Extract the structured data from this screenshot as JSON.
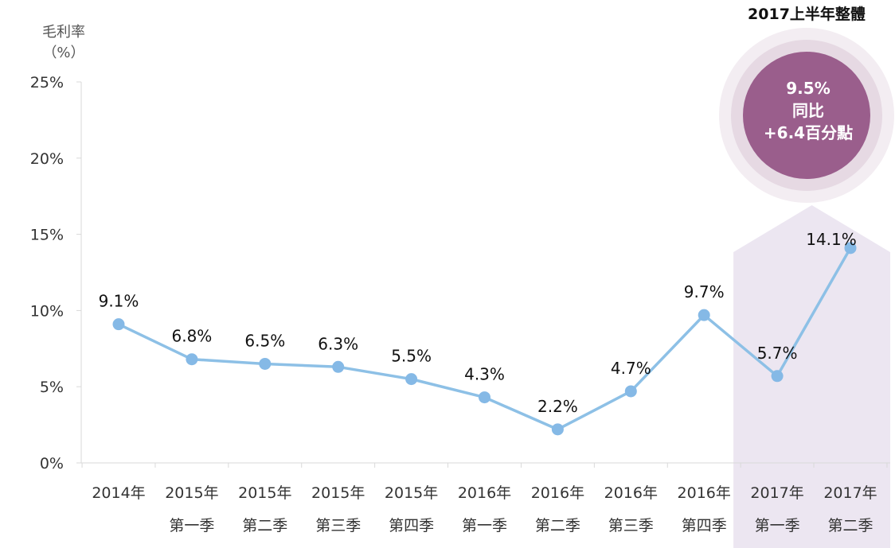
{
  "chart_data": {
    "type": "line",
    "ylabel": "毛利率",
    "ylabel_unit": "（%）",
    "ylim": [
      0,
      25
    ],
    "yticks": [
      0,
      5,
      10,
      15,
      20,
      25
    ],
    "ytick_labels": [
      "0%",
      "5%",
      "10%",
      "15%",
      "20%",
      "25%"
    ],
    "grid": false,
    "categories": [
      [
        "2014年",
        ""
      ],
      [
        "2015年",
        "第一季"
      ],
      [
        "2015年",
        "第二季"
      ],
      [
        "2015年",
        "第三季"
      ],
      [
        "2015年",
        "第四季"
      ],
      [
        "2016年",
        "第一季"
      ],
      [
        "2016年",
        "第二季"
      ],
      [
        "2016年",
        "第三季"
      ],
      [
        "2016年",
        "第四季"
      ],
      [
        "2017年",
        "第一季"
      ],
      [
        "2017年",
        "第二季"
      ]
    ],
    "series": [
      {
        "values": [
          9.1,
          6.8,
          6.5,
          6.3,
          5.5,
          4.3,
          2.2,
          4.7,
          9.7,
          5.7,
          14.1
        ]
      }
    ],
    "data_labels": [
      "9.1%",
      "6.8%",
      "6.5%",
      "6.3%",
      "5.5%",
      "4.3%",
      "2.2%",
      "4.7%",
      "9.7%",
      "5.7%",
      "14.1%"
    ],
    "highlight": {
      "title": "2017上半年整體",
      "lines": [
        "9.5%",
        "同比",
        "+6.4百分點"
      ],
      "category_range": [
        9,
        10
      ]
    },
    "colors": {
      "line": "#8dc0e6",
      "marker": "#85b9e6",
      "axis": "#d9d9d9",
      "highlight_band": "#ece6f1",
      "bubble_inner": "#9a5e8c",
      "bubble_mid": "#e6d9e3",
      "bubble_outer": "#f3edf2"
    }
  }
}
